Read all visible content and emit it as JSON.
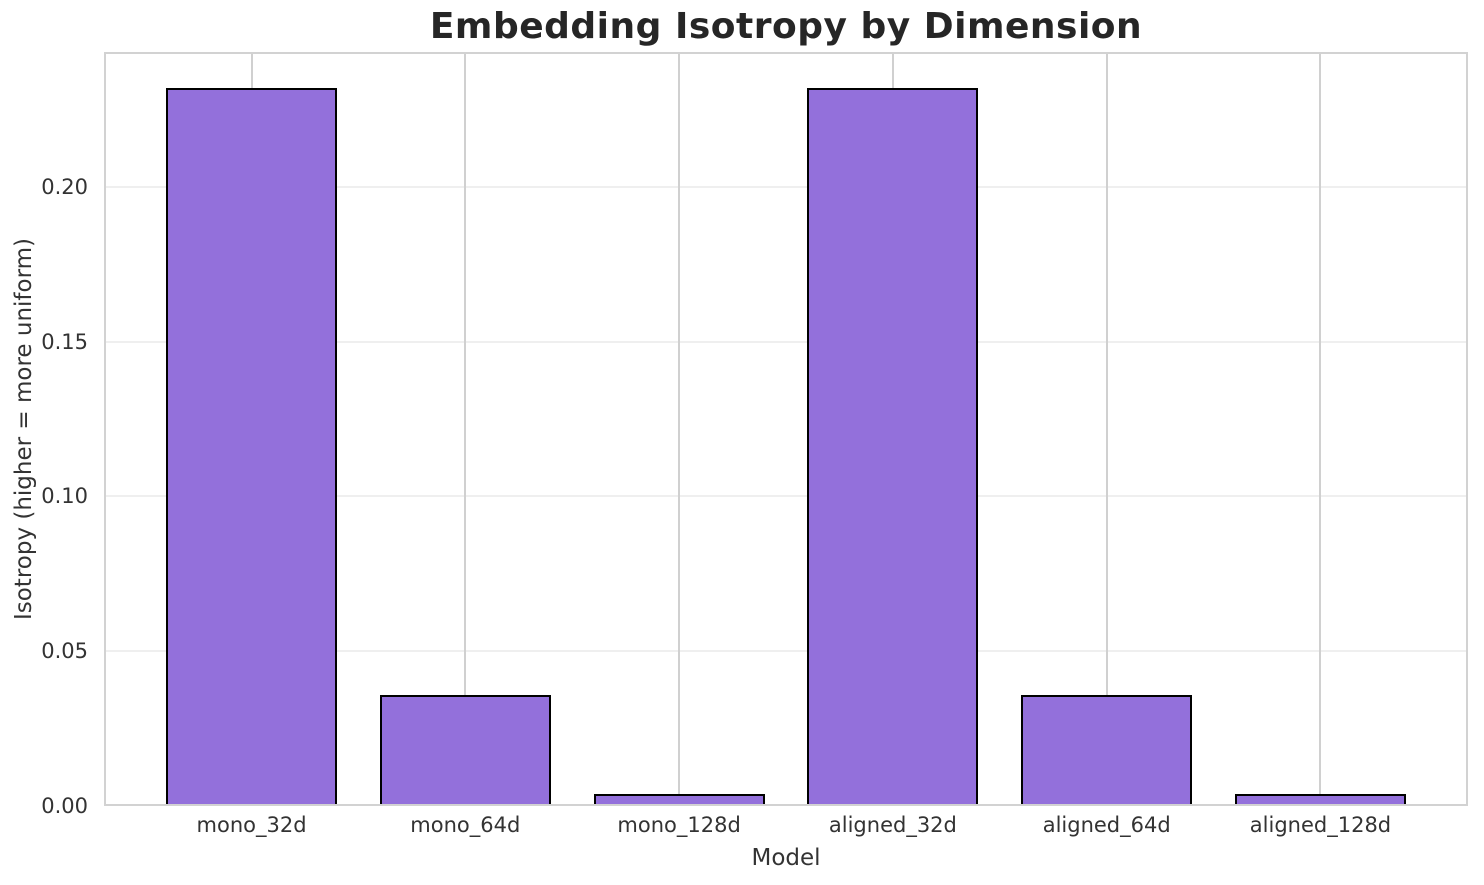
{
  "chart_data": {
    "type": "bar",
    "title": "Embedding Isotropy by Dimension",
    "xlabel": "Model",
    "ylabel": "Isotropy (higher = more uniform)",
    "categories": [
      "mono_32d",
      "mono_64d",
      "mono_128d",
      "aligned_32d",
      "aligned_64d",
      "aligned_128d"
    ],
    "values": [
      0.232,
      0.036,
      0.004,
      0.232,
      0.036,
      0.004
    ],
    "ylim": [
      0,
      0.2436
    ],
    "xlim": [
      -0.69,
      5.69
    ],
    "yticks": [
      0,
      0.05,
      0.1,
      0.15,
      0.2
    ],
    "ytick_labels": [
      "0.00",
      "0.05",
      "0.10",
      "0.15",
      "0.20"
    ],
    "bar_width": 0.8,
    "grid": true,
    "legend": false,
    "colors": {
      "bar_fill": "#9370DB",
      "bar_edge": "#000000",
      "v_grid": "#d0d0d0",
      "h_grid": "#efefef",
      "spine": "#d2d2d2",
      "title_text": "#262626",
      "tick_text": "#333333"
    }
  }
}
